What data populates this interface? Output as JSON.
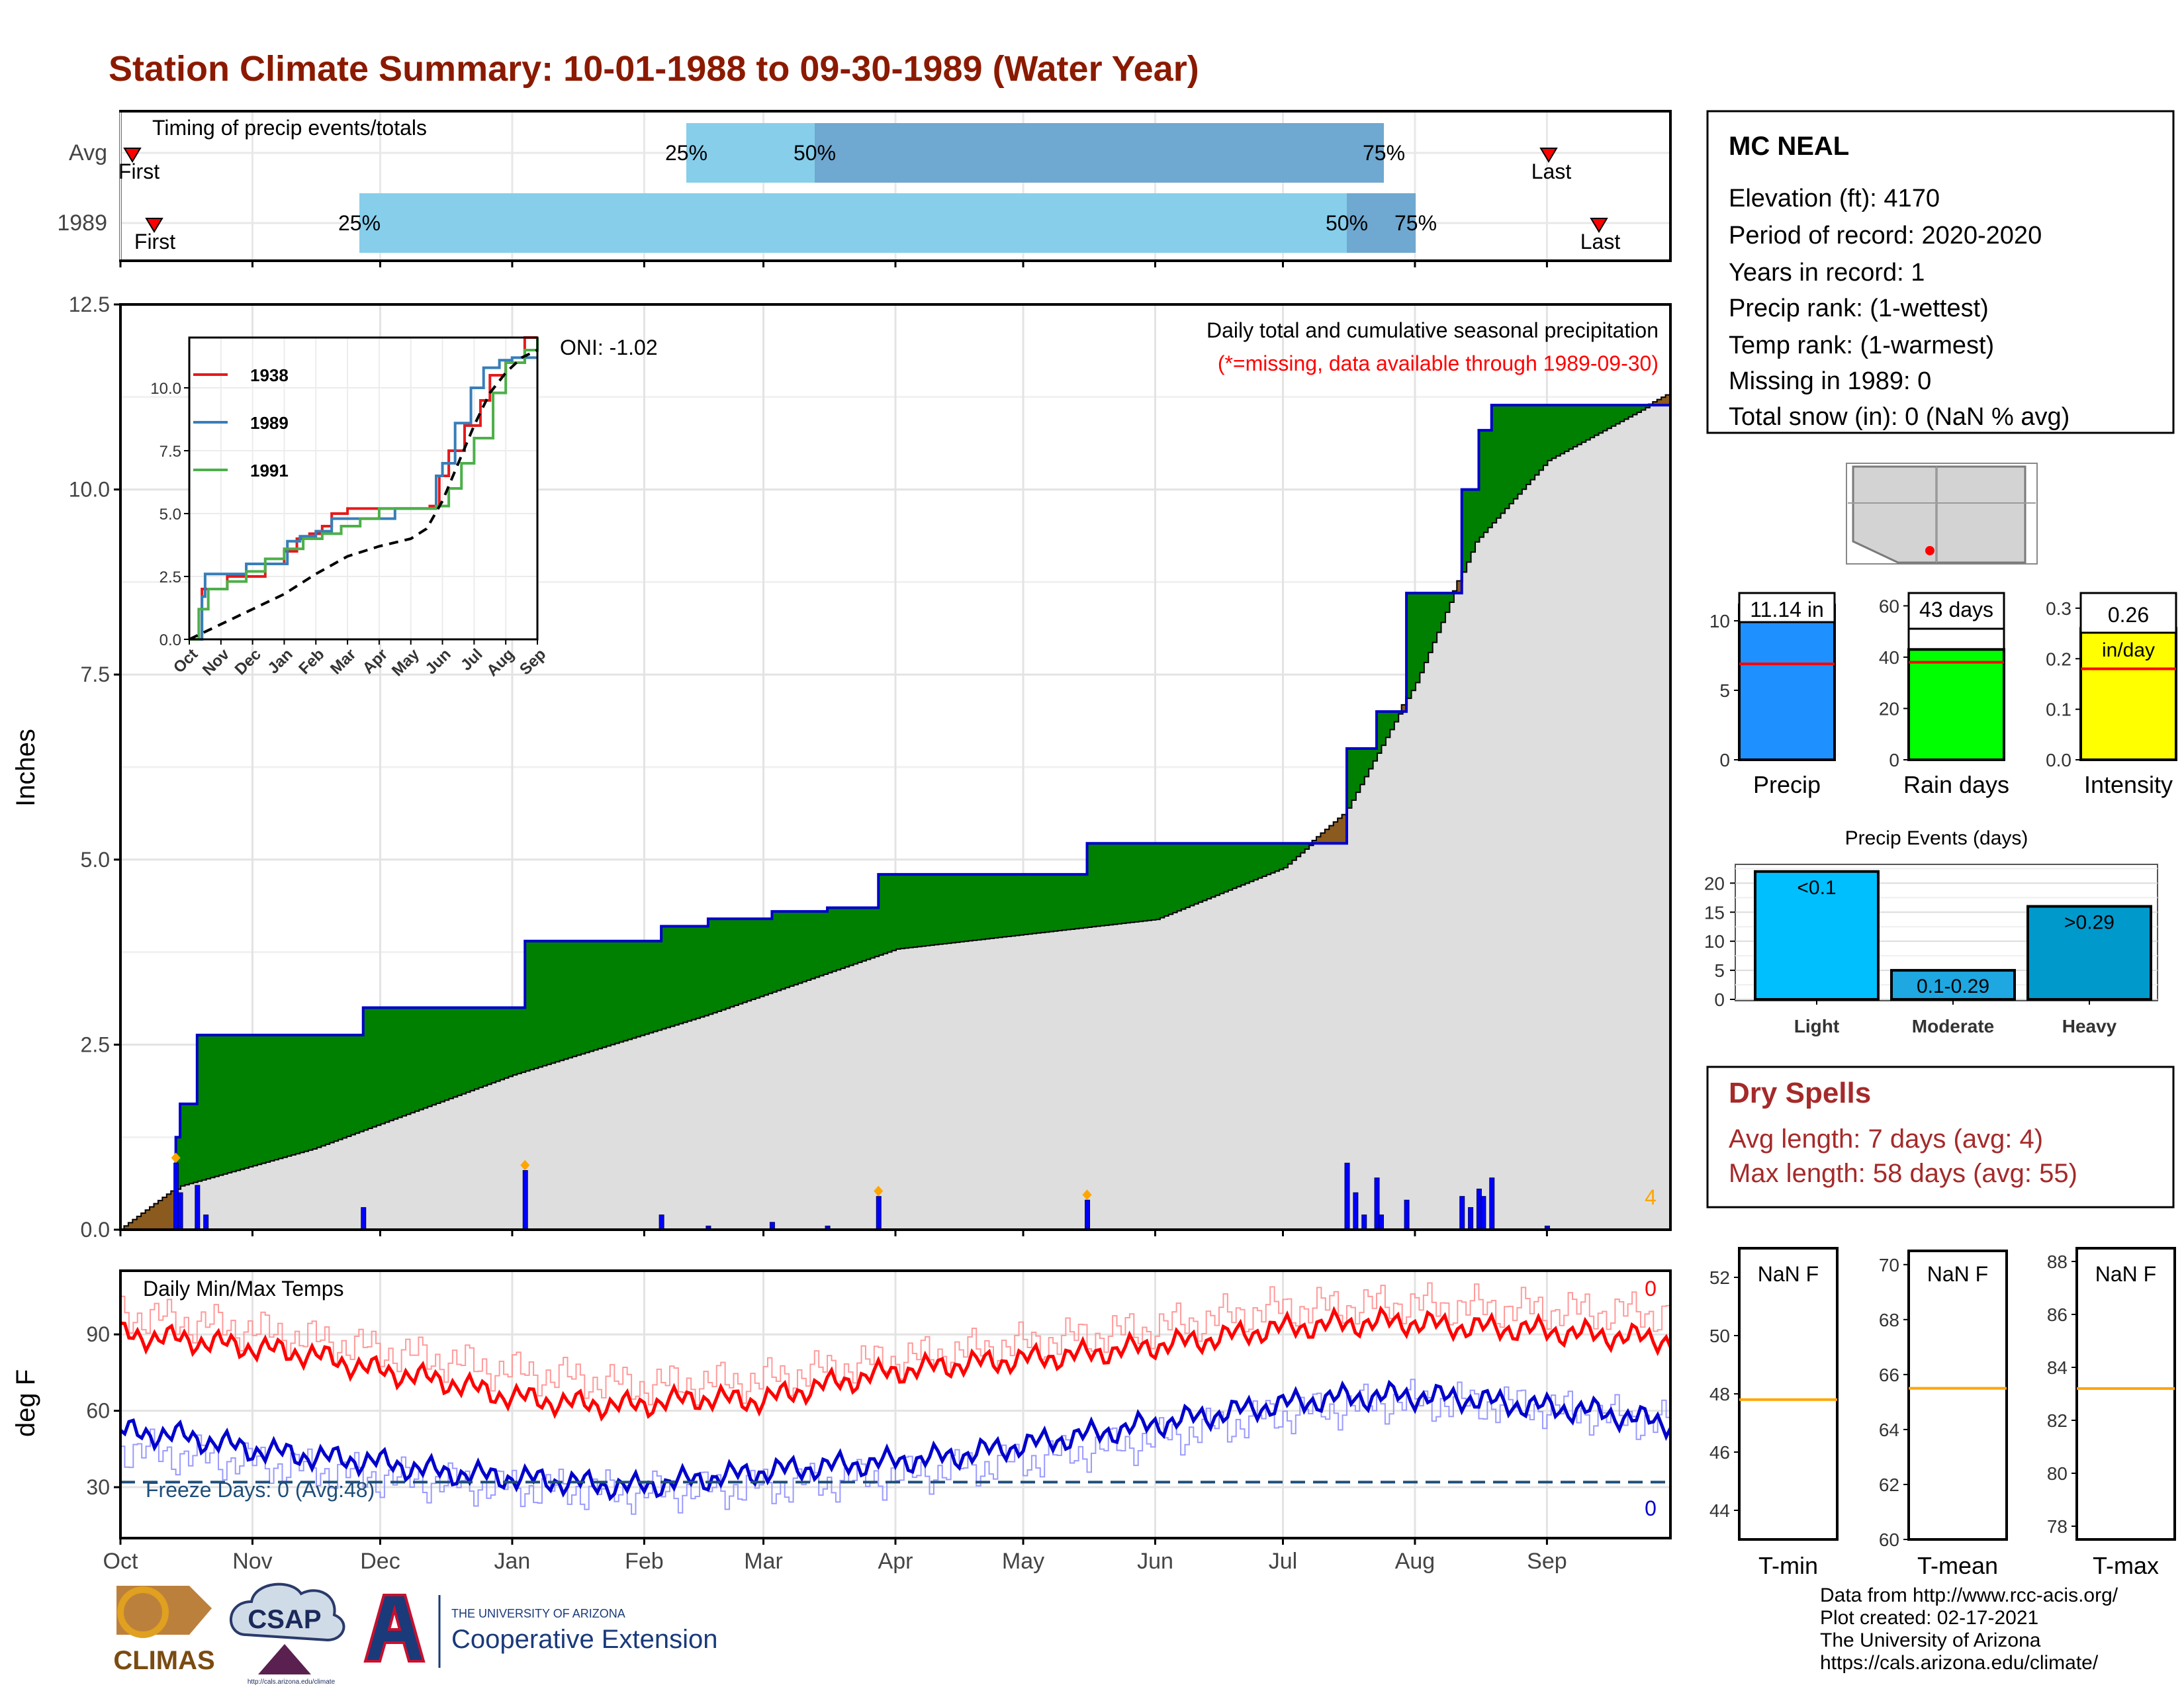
{
  "title": "Station Climate Summary: 10-01-1988 to 09-30-1989 (Water Year)",
  "colors": {
    "title": "#8b1a00",
    "cumulative_fill": "#008000",
    "cumulative_line": "#0000cc",
    "avg_fill": "#dedede",
    "deficit_fill": "#8b5a1e",
    "daily_bars": "#0000ff",
    "tmax": "#ff0000",
    "tmin": "#0000cc",
    "freeze_line": "#1f4e79",
    "dry_spells": "#a52a2a"
  },
  "timing": {
    "title": "Timing of precip events/totals",
    "rows": [
      {
        "label": "Avg",
        "first_label": "First",
        "last_label": "Last"
      },
      {
        "label": "1989",
        "first_label": "First",
        "last_label": "Last"
      }
    ],
    "pct_labels": [
      "25%",
      "50%",
      "75%"
    ]
  },
  "precip": {
    "ylabel": "Inches",
    "yticks": [
      "0.0",
      "2.5",
      "5.0",
      "7.5",
      "10.0",
      "12.5"
    ],
    "caption": "Daily total and cumulative seasonal precipitation",
    "missing_note": "(*=missing, data available through 1989-09-30)",
    "oni": "ONI: -1.02",
    "count_label": "4"
  },
  "inset": {
    "yticks": [
      "0.0",
      "2.5",
      "5.0",
      "7.5",
      "10.0"
    ],
    "xticks": [
      "Oct",
      "Nov",
      "Dec",
      "Jan",
      "Feb",
      "Mar",
      "Apr",
      "May",
      "Jun",
      "Jul",
      "Aug",
      "Sep"
    ],
    "legend": [
      {
        "name": "1938",
        "color": "#e41a1c"
      },
      {
        "name": "1989",
        "color": "#377eb8"
      },
      {
        "name": "1991",
        "color": "#4daf4a"
      }
    ]
  },
  "temps": {
    "title": "Daily Min/Max Temps",
    "ylabel": "deg F",
    "yticks": [
      "30",
      "60",
      "90"
    ],
    "freeze_label": "Freeze Days: 0 (Avg:48)",
    "tmax_count": "0",
    "tmin_count": "0"
  },
  "months": [
    "Oct",
    "Nov",
    "Dec",
    "Jan",
    "Feb",
    "Mar",
    "Apr",
    "May",
    "Jun",
    "Jul",
    "Aug",
    "Sep"
  ],
  "station": {
    "name": "MC NEAL",
    "lines": [
      "Elevation (ft): 4170",
      "Period of record: 2020-2020",
      "Years in record: 1",
      "Precip rank:  (1-wettest)",
      "Temp rank:  (1-warmest)",
      "Missing in 1989: 0",
      "Total snow (in): 0 (NaN % avg)"
    ]
  },
  "summary_bars": [
    {
      "label": "Precip",
      "value_label": "11.14 in",
      "unit_label": "",
      "yticks": [
        "0",
        "5",
        "10"
      ],
      "color": "#1e90ff"
    },
    {
      "label": "Rain days",
      "value_label": "43 days",
      "unit_label": "",
      "yticks": [
        "0",
        "20",
        "40",
        "60"
      ],
      "color": "#00ff00"
    },
    {
      "label": "Intensity",
      "value_label": "0.26",
      "unit_label": "in/day",
      "yticks": [
        "0.0",
        "0.1",
        "0.2",
        "0.3"
      ],
      "color": "#ffff00"
    }
  ],
  "events": {
    "title": "Precip Events (days)",
    "yticks": [
      "0",
      "5",
      "10",
      "15",
      "20"
    ],
    "bars": [
      {
        "category": "Light",
        "label": "<0.1",
        "color": "#00bfff"
      },
      {
        "category": "Moderate",
        "label": "0.1-0.29",
        "color": "#1ea7e0"
      },
      {
        "category": "Heavy",
        "label": ">0.29",
        "color": "#0099cc"
      }
    ]
  },
  "dry_spells": {
    "title": "Dry Spells",
    "avg_line": "Avg length: 7 days (avg: 4)",
    "max_line": "Max length: 58 days (avg: 55)"
  },
  "temp_boxes": [
    {
      "label": "T-min",
      "value_label": "NaN F",
      "yticks": [
        "44",
        "46",
        "48",
        "50",
        "52"
      ]
    },
    {
      "label": "T-mean",
      "value_label": "NaN F",
      "yticks": [
        "60",
        "62",
        "64",
        "66",
        "68",
        "70"
      ]
    },
    {
      "label": "T-max",
      "value_label": "NaN F",
      "yticks": [
        "78",
        "80",
        "82",
        "84",
        "86",
        "88"
      ]
    }
  ],
  "footer": {
    "lines": [
      "Data from http://www.rcc-acis.org/",
      "Plot created: 02-17-2021",
      "The University of Arizona",
      "https://cals.arizona.edu/climate/"
    ]
  },
  "logos": {
    "climas": "CLIMAS",
    "csap": "CSAP",
    "csap_url": "http://cals.arizona.edu/climate",
    "ua_small": "THE UNIVERSITY OF ARIZONA",
    "ua_big": "Cooperative Extension"
  },
  "chart_data": [
    {
      "type": "area",
      "x_unit": "date",
      "ylim": [
        0,
        12.5
      ],
      "cumulative_1989": {
        "x": [
          "1988-10-01",
          "1988-10-14",
          "1988-10-15",
          "1988-10-19",
          "1988-11-27",
          "1989-01-04",
          "1989-02-05",
          "1989-02-16",
          "1989-03-03",
          "1989-03-16",
          "1989-03-28",
          "1989-05-16",
          "1989-07-16",
          "1989-07-23",
          "1989-07-30",
          "1989-08-12",
          "1989-08-16",
          "1989-08-19",
          "1989-09-30"
        ],
        "y": [
          0.0,
          1.25,
          1.7,
          2.63,
          3.0,
          3.9,
          4.1,
          4.2,
          4.3,
          4.35,
          4.8,
          5.22,
          6.5,
          7.0,
          8.6,
          10.0,
          10.8,
          11.14,
          11.14
        ]
      },
      "average": {
        "x": [
          "1988-10-01",
          "1988-10-15",
          "1988-11-15",
          "1989-01-01",
          "1989-02-15",
          "1989-04-01",
          "1989-06-01",
          "1989-07-01",
          "1989-07-15",
          "1989-08-01",
          "1989-08-15",
          "1989-09-01",
          "1989-09-30"
        ],
        "y": [
          0.0,
          0.6,
          1.1,
          2.1,
          2.9,
          3.8,
          4.2,
          4.9,
          5.6,
          7.4,
          9.3,
          10.4,
          11.3
        ]
      },
      "daily_precip": [
        {
          "date": "1988-10-14",
          "value": 0.9
        },
        {
          "date": "1988-10-15",
          "value": 0.5
        },
        {
          "date": "1988-10-19",
          "value": 0.6
        },
        {
          "date": "1988-10-21",
          "value": 0.2
        },
        {
          "date": "1988-11-27",
          "value": 0.3
        },
        {
          "date": "1989-01-04",
          "value": 0.8
        },
        {
          "date": "1989-02-05",
          "value": 0.2
        },
        {
          "date": "1989-02-16",
          "value": 0.05
        },
        {
          "date": "1989-03-03",
          "value": 0.1
        },
        {
          "date": "1989-03-16",
          "value": 0.05
        },
        {
          "date": "1989-03-28",
          "value": 0.45
        },
        {
          "date": "1989-05-16",
          "value": 0.4
        },
        {
          "date": "1989-07-16",
          "value": 0.9
        },
        {
          "date": "1989-07-18",
          "value": 0.5
        },
        {
          "date": "1989-07-20",
          "value": 0.2
        },
        {
          "date": "1989-07-23",
          "value": 0.7
        },
        {
          "date": "1989-07-24",
          "value": 0.2
        },
        {
          "date": "1989-07-30",
          "value": 0.4
        },
        {
          "date": "1989-08-12",
          "value": 0.45
        },
        {
          "date": "1989-08-14",
          "value": 0.3
        },
        {
          "date": "1989-08-16",
          "value": 0.55
        },
        {
          "date": "1989-08-17",
          "value": 0.45
        },
        {
          "date": "1989-08-19",
          "value": 0.7
        },
        {
          "date": "1989-09-01",
          "value": 0.05
        }
      ],
      "missing_markers": [
        "1988-10-14",
        "1989-01-04",
        "1989-03-28",
        "1989-05-16"
      ]
    },
    {
      "type": "line",
      "name_hint": "inset cumulative",
      "xlim": [
        "Oct",
        "Sep"
      ],
      "ylim": [
        0,
        12
      ],
      "series": [
        {
          "name": "1938",
          "x": [
            0,
            0.4,
            0.5,
            1.2,
            1.8,
            2.4,
            3.0,
            3.4,
            3.8,
            4.2,
            4.5,
            5.0,
            6.0,
            7.0,
            7.6,
            7.9,
            8.2,
            8.7,
            9.2,
            9.5,
            10.0,
            10.6,
            11.0
          ],
          "y": [
            0,
            2.0,
            2.0,
            2.5,
            2.5,
            3.0,
            3.5,
            4.0,
            4.2,
            4.5,
            5.0,
            5.2,
            5.2,
            5.2,
            5.3,
            6.5,
            7.5,
            8.5,
            9.5,
            10.5,
            11.0,
            12.0,
            12.0
          ]
        },
        {
          "name": "1989",
          "x": [
            0,
            0.4,
            0.5,
            1.2,
            1.8,
            2.2,
            3.1,
            3.5,
            4.0,
            4.5,
            5.5,
            6.5,
            7.5,
            7.8,
            8.0,
            8.4,
            8.9,
            9.3,
            9.8,
            10.2,
            11.0
          ],
          "y": [
            0,
            1.7,
            2.6,
            2.6,
            3.0,
            3.0,
            3.9,
            4.1,
            4.3,
            4.8,
            4.8,
            5.2,
            5.2,
            6.5,
            7.0,
            8.6,
            10.0,
            10.8,
            11.1,
            11.2,
            11.2
          ]
        },
        {
          "name": "1991",
          "x": [
            0,
            0.3,
            0.6,
            1.2,
            1.8,
            2.4,
            3.0,
            3.6,
            4.2,
            4.8,
            5.4,
            6.0,
            7.0,
            7.8,
            8.2,
            8.6,
            9.0,
            9.6,
            10.0,
            10.6,
            11.0
          ],
          "y": [
            0,
            1.2,
            2.0,
            2.3,
            2.7,
            3.2,
            3.6,
            4.0,
            4.2,
            4.5,
            4.8,
            5.2,
            5.2,
            5.3,
            6.0,
            7.0,
            8.0,
            9.8,
            11.0,
            11.5,
            12.0
          ]
        },
        {
          "name": "average",
          "x": [
            0,
            1,
            2,
            3,
            4,
            5,
            6,
            7,
            7.5,
            8,
            8.5,
            9,
            9.5,
            10,
            10.5,
            11
          ],
          "y": [
            0,
            0.6,
            1.2,
            1.8,
            2.6,
            3.3,
            3.7,
            4.0,
            4.4,
            5.5,
            7.0,
            8.5,
            9.8,
            10.6,
            11.2,
            11.5
          ]
        }
      ]
    },
    {
      "type": "line",
      "name_hint": "daily temperatures",
      "ylim": [
        10,
        115
      ],
      "series": [
        {
          "name": "tmax",
          "x": [
            0,
            15,
            30,
            45,
            60,
            75,
            90,
            105,
            120,
            135,
            150,
            165,
            180,
            195,
            210,
            225,
            240,
            255,
            270,
            285,
            300,
            315,
            330,
            345,
            364
          ],
          "y": [
            90,
            88,
            85,
            82,
            76,
            72,
            66,
            63,
            62,
            65,
            64,
            70,
            75,
            78,
            80,
            82,
            85,
            88,
            92,
            94,
            95,
            93,
            92,
            90,
            88
          ]
        },
        {
          "name": "tmin",
          "x": [
            0,
            15,
            30,
            45,
            60,
            75,
            90,
            105,
            120,
            135,
            150,
            165,
            180,
            195,
            210,
            225,
            240,
            255,
            270,
            285,
            300,
            315,
            330,
            345,
            364
          ],
          "y": [
            52,
            50,
            45,
            42,
            40,
            36,
            34,
            32,
            30,
            33,
            36,
            38,
            40,
            42,
            46,
            50,
            54,
            58,
            62,
            65,
            66,
            65,
            62,
            60,
            55
          ]
        },
        {
          "name": "tmax_avg",
          "x": [
            0,
            30,
            60,
            90,
            120,
            150,
            180,
            210,
            240,
            270,
            300,
            330,
            364
          ],
          "y": [
            98,
            92,
            84,
            76,
            70,
            72,
            80,
            86,
            92,
            100,
            102,
            100,
            98
          ]
        },
        {
          "name": "tmin_avg",
          "x": [
            0,
            30,
            60,
            90,
            120,
            150,
            180,
            210,
            240,
            270,
            300,
            330,
            364
          ],
          "y": [
            45,
            40,
            34,
            30,
            28,
            30,
            34,
            40,
            48,
            58,
            64,
            62,
            55
          ]
        }
      ],
      "freeze_line": 32
    },
    {
      "type": "bar",
      "categories": [
        "Precip",
        "Rain days",
        "Intensity"
      ],
      "values": [
        11.14,
        43,
        0.26
      ],
      "averages": [
        6.9,
        38,
        0.18
      ],
      "ylims": [
        [
          0,
          12
        ],
        [
          0,
          65
        ],
        [
          0,
          0.33
        ]
      ]
    },
    {
      "type": "bar",
      "title": "Precip Events (days)",
      "categories": [
        "Light",
        "Moderate",
        "Heavy"
      ],
      "values": [
        22,
        5,
        16
      ],
      "ylim": [
        0,
        23
      ]
    },
    {
      "type": "bar",
      "categories": [
        "T-min",
        "T-mean",
        "T-max"
      ],
      "averages": [
        47.8,
        65.5,
        83.2
      ],
      "ylims": [
        [
          43,
          53
        ],
        [
          60,
          70.5
        ],
        [
          77.5,
          88.5
        ]
      ]
    }
  ]
}
